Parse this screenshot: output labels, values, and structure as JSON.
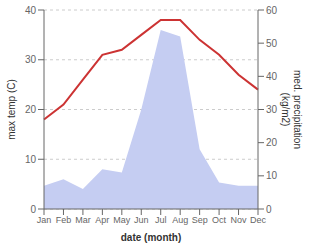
{
  "chart_data": {
    "type": "line",
    "categories": [
      "Jan",
      "Feb",
      "Mar",
      "Apr",
      "May",
      "Jun",
      "Jul",
      "Aug",
      "Sep",
      "Oct",
      "Nov",
      "Dec"
    ],
    "series": [
      {
        "type": "area",
        "axis": "y2",
        "color": "#c5cdf2",
        "values": [
          7,
          9,
          6,
          12,
          11,
          30,
          54,
          52,
          18,
          8,
          7,
          7
        ]
      },
      {
        "type": "line",
        "color": "#cc3333",
        "values": [
          18,
          21,
          26,
          31,
          32,
          35,
          38,
          38,
          34,
          31,
          27,
          24
        ]
      }
    ],
    "xlabel": "date (month)",
    "ylabel": "max temp (C)",
    "y2label": "med. precipitation\n(kg/m2)",
    "ylim": [
      0,
      40
    ],
    "yticks": [
      0,
      10,
      20,
      30,
      40
    ],
    "y2lim": [
      0,
      60
    ],
    "y2ticks": [
      0,
      10,
      20,
      30,
      40,
      50,
      60
    ],
    "grid": true
  }
}
